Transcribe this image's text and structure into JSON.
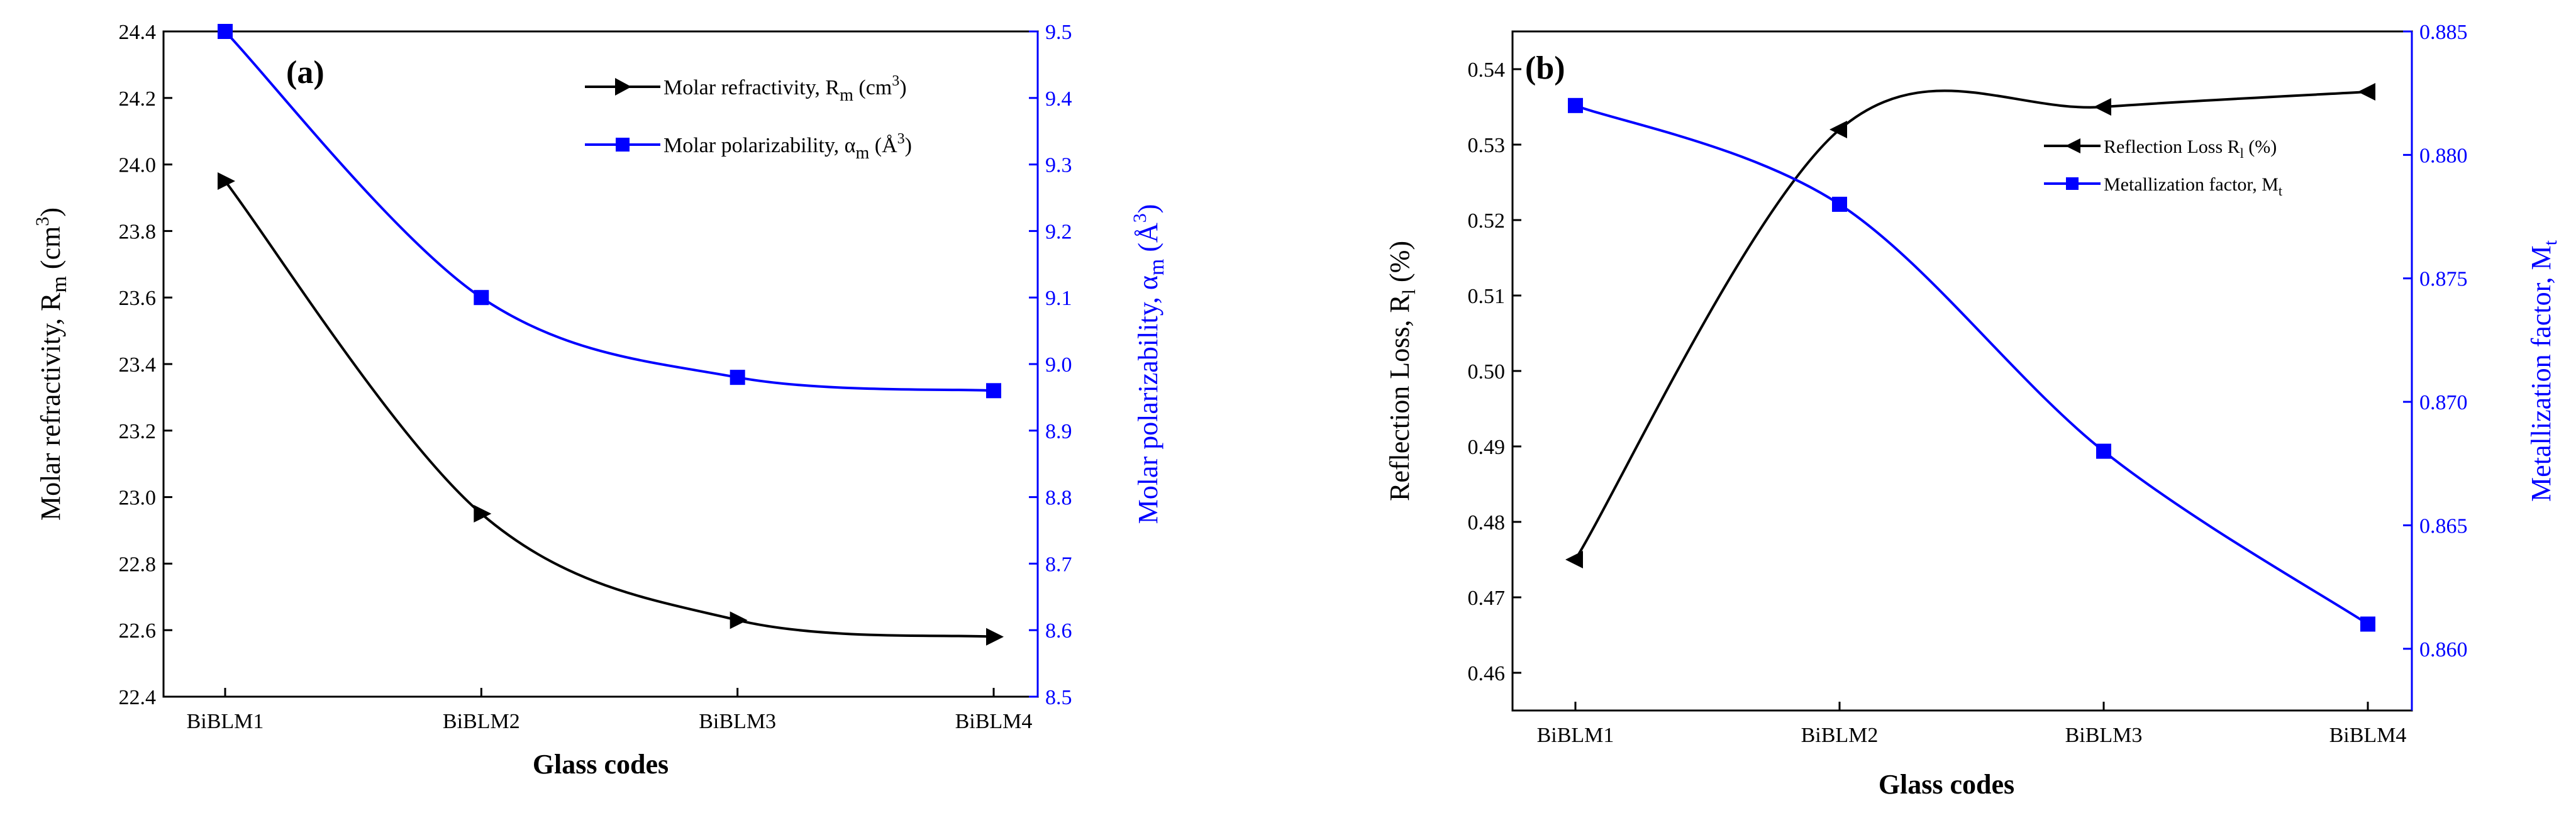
{
  "chart_data": [
    {
      "type": "line",
      "panel_label": "(a)",
      "categories": [
        "BiBLM1",
        "BiBLM2",
        "BiBLM3",
        "BiBLM4"
      ],
      "xlabel": "Glass codes",
      "ylabel_left": "Molar refractivity, R",
      "ylabel_left_sub": "m",
      "ylabel_left_unit": " (cm",
      "ylabel_left_sup": "3",
      "ylabel_left_close": ")",
      "ylabel_right": "Molar polarizability, α",
      "ylabel_right_sub": "m",
      "ylabel_right_unit": " (Å",
      "ylabel_right_sup": "3",
      "ylabel_right_close": ")",
      "ylim_left": [
        22.4,
        24.4
      ],
      "yticks_left": [
        "22.4",
        "22.6",
        "22.8",
        "23.0",
        "23.2",
        "23.4",
        "23.6",
        "23.8",
        "24.0",
        "24.2",
        "24.4"
      ],
      "ylim_right": [
        8.5,
        9.5
      ],
      "yticks_right": [
        "8.5",
        "8.6",
        "8.7",
        "8.8",
        "8.9",
        "9.0",
        "9.1",
        "9.2",
        "9.3",
        "9.4",
        "9.5"
      ],
      "series": [
        {
          "name": "Molar refractivity, R",
          "name_sub": "m",
          "name_unit": " (cm",
          "name_sup": "3",
          "name_close": ")",
          "axis": "left",
          "color": "#000000",
          "marker": "triangle-right",
          "values": [
            23.95,
            22.95,
            22.63,
            22.58
          ]
        },
        {
          "name": "Molar polarizability, α",
          "name_sub": "m",
          "name_unit": " (Å",
          "name_sup": "3",
          "name_close": ")",
          "axis": "right",
          "color": "#0000ff",
          "marker": "square",
          "values": [
            9.5,
            9.1,
            8.98,
            8.96
          ]
        }
      ]
    },
    {
      "type": "line",
      "panel_label": "(b)",
      "categories": [
        "BiBLM1",
        "BiBLM2",
        "BiBLM3",
        "BiBLM4"
      ],
      "xlabel": "Glass codes",
      "ylabel_left": "Reflection Loss, R",
      "ylabel_left_sub": "l",
      "ylabel_left_unit": " (%)",
      "ylabel_right": "Metallization factor, M",
      "ylabel_right_sub": "t",
      "ylim_left": [
        0.455,
        0.545
      ],
      "yticks_left": [
        "0.46",
        "0.47",
        "0.48",
        "0.49",
        "0.50",
        "0.51",
        "0.52",
        "0.53",
        "0.54"
      ],
      "ylim_right": [
        0.8575,
        0.885
      ],
      "yticks_right": [
        "0.860",
        "0.865",
        "0.870",
        "0.875",
        "0.880",
        "0.885"
      ],
      "series": [
        {
          "name": "Reflection Loss R",
          "name_sub": "l",
          "name_unit": " (%)",
          "axis": "left",
          "color": "#000000",
          "marker": "triangle-left",
          "values": [
            0.475,
            0.532,
            0.535,
            0.537
          ]
        },
        {
          "name": "Metallization factor, M",
          "name_sub": "t",
          "axis": "right",
          "color": "#0000ff",
          "marker": "square",
          "values": [
            0.882,
            0.878,
            0.868,
            0.861
          ]
        }
      ]
    }
  ]
}
